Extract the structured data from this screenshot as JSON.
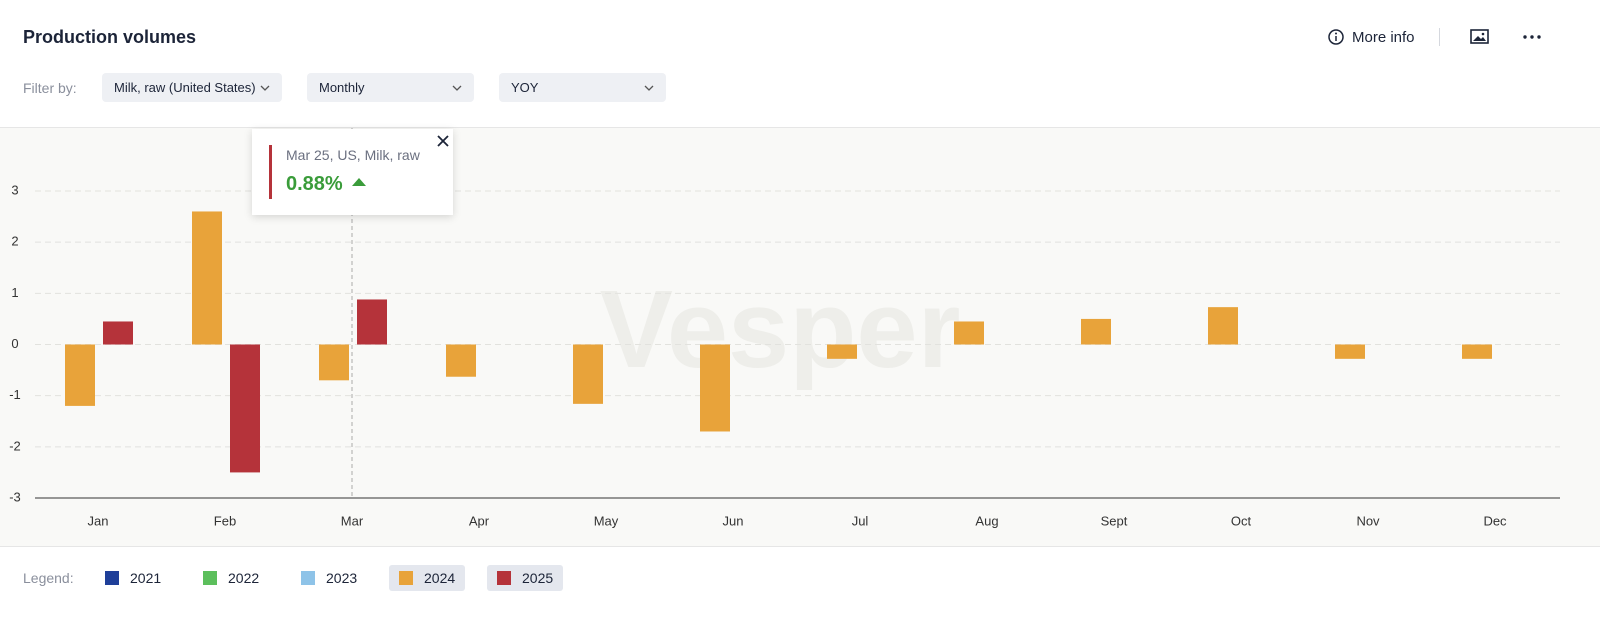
{
  "header": {
    "title": "Production volumes",
    "more_info": "More info"
  },
  "filters": {
    "label": "Filter by:",
    "options": [
      "Milk, raw (United States)",
      "Monthly",
      "YOY"
    ]
  },
  "chart_data": {
    "type": "bar",
    "watermark": "Vesper",
    "categories": [
      "Jan",
      "Feb",
      "Mar",
      "Apr",
      "May",
      "Jun",
      "Jul",
      "Aug",
      "Sept",
      "Oct",
      "Nov",
      "Dec"
    ],
    "series": [
      {
        "name": "2021",
        "color": "#1f3f99",
        "active": false,
        "values": [
          null,
          null,
          null,
          null,
          null,
          null,
          null,
          null,
          null,
          null,
          null,
          null
        ]
      },
      {
        "name": "2022",
        "color": "#5cbf5c",
        "active": false,
        "values": [
          null,
          null,
          null,
          null,
          null,
          null,
          null,
          null,
          null,
          null,
          null,
          null
        ]
      },
      {
        "name": "2023",
        "color": "#8ec3e8",
        "active": false,
        "values": [
          null,
          null,
          null,
          null,
          null,
          null,
          null,
          null,
          null,
          null,
          null,
          null
        ]
      },
      {
        "name": "2024",
        "color": "#e8a33a",
        "active": true,
        "values": [
          -1.2,
          2.6,
          -0.7,
          -0.63,
          -1.16,
          -1.7,
          -0.28,
          0.45,
          0.5,
          0.73,
          -0.28,
          -0.28
        ]
      },
      {
        "name": "2025",
        "color": "#b5333a",
        "active": true,
        "values": [
          0.45,
          -2.5,
          0.88,
          null,
          null,
          null,
          null,
          null,
          null,
          null,
          null,
          null
        ],
        "value_labels": [
          null,
          null,
          "0.88%",
          null,
          null,
          null,
          null,
          null,
          null,
          null,
          null,
          null
        ]
      }
    ],
    "ylim": [
      -3,
      3
    ],
    "yticks": [
      -3,
      -2,
      -1,
      0,
      1,
      2,
      3
    ],
    "grid": true,
    "tooltip": {
      "title": "Mar 25, US, Milk, raw",
      "category_index": 2,
      "series_index": 4
    },
    "legend_label": "Legend:"
  }
}
